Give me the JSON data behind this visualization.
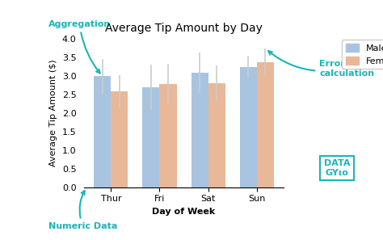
{
  "title": "Average Tip Amount by Day",
  "xlabel": "Day of Week",
  "ylabel": "Average Tip Amount ($)",
  "categories": [
    "Thur",
    "Fri",
    "Sat",
    "Sun"
  ],
  "male_values": [
    2.98,
    2.68,
    3.08,
    3.24
  ],
  "female_values": [
    2.57,
    2.78,
    2.8,
    3.36
  ],
  "male_ci": [
    0.47,
    0.62,
    0.55,
    0.3
  ],
  "female_ci": [
    0.44,
    0.53,
    0.48,
    0.37
  ],
  "male_color": "#a8c4e0",
  "female_color": "#e8b898",
  "ylim": [
    0,
    4.0
  ],
  "yticks": [
    0.0,
    0.5,
    1.0,
    1.5,
    2.0,
    2.5,
    3.0,
    3.5,
    4.0
  ],
  "bg_color": "#ffffff",
  "annotation_color": "#1ab5b8",
  "legend_labels": [
    "Male",
    "Female"
  ],
  "bar_width": 0.35,
  "title_fontsize": 10,
  "label_fontsize": 8,
  "tick_fontsize": 8,
  "legend_fontsize": 8,
  "datagy_box_color": "#1ab5b8"
}
